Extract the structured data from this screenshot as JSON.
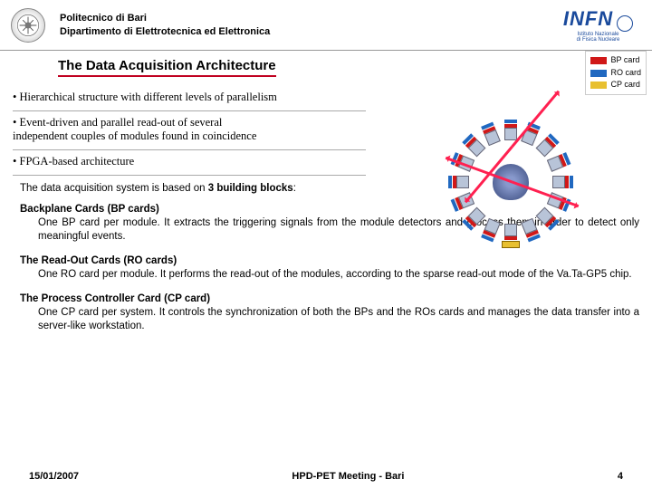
{
  "header": {
    "institution": "Politecnico di Bari",
    "department": "Dipartimento di Elettrotecnica ed Elettronica",
    "partner_logo_text": "INFN",
    "partner_logo_sub1": "Istituto Nazionale",
    "partner_logo_sub2": "di Fisica Nucleare"
  },
  "title": "The Data Acquisition Architecture",
  "bullets": [
    "• Hierarchical structure with different levels of parallelism",
    "• Event-driven and parallel read-out of several\n  independent couples of modules found in coincidence",
    "• FPGA-based architecture"
  ],
  "intro": "The data acquisition system is based on 3 building blocks:",
  "blocks": [
    {
      "title": "Backplane Cards (BP cards)",
      "body": "One BP card per module. It extracts the triggering signals from the module detectors and process them in order to detect only meaningful events."
    },
    {
      "title": "The Read-Out Cards (RO cards)",
      "body": "One RO card per module. It performs the read-out of the modules, according to the sparse read-out mode of the Va.Ta-GP5 chip."
    },
    {
      "title": "The Process Controller Card (CP card)",
      "body": "One CP card per system. It controls the synchronization of both the BPs and the ROs cards and manages the data transfer into a server-like workstation."
    }
  ],
  "legend": {
    "bp": {
      "label": "BP card",
      "color": "#d01818"
    },
    "ro": {
      "label": "RO card",
      "color": "#2068c0"
    },
    "cp": {
      "label": "CP card",
      "color": "#e8c030"
    }
  },
  "diagram": {
    "module_count": 16,
    "detector_color": "#b8c4d8",
    "bp_color": "#d01818",
    "ro_color": "#2068c0",
    "cp_color": "#e8c030",
    "arrow_color": "#ff2050",
    "brain_color": "#6a7bb0"
  },
  "footer": {
    "date": "15/01/2007",
    "meeting": "HPD-PET Meeting - Bari",
    "page": "4"
  },
  "colors": {
    "title_underline": "#c00020",
    "rule": "#aaaaaa",
    "text": "#000000"
  }
}
